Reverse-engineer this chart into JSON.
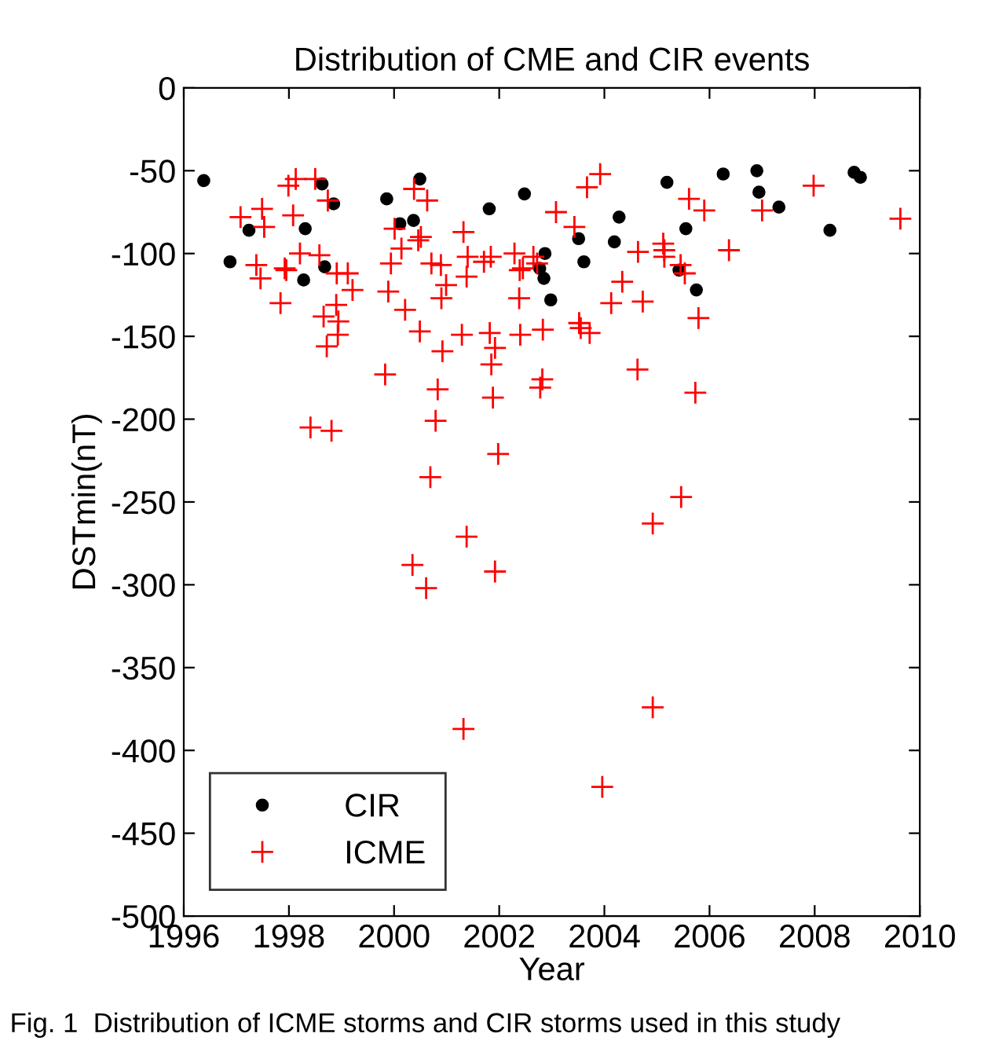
{
  "chart_data": {
    "type": "scatter",
    "title": "Distribution of CME and CIR events",
    "xlabel": "Year",
    "ylabel": "DSTmin(nT)",
    "xlim": [
      1996,
      2010
    ],
    "xticks": [
      1996,
      1998,
      2000,
      2002,
      2004,
      2006,
      2008,
      2010
    ],
    "ylim": [
      -500,
      0
    ],
    "yticks": [
      -500,
      -450,
      -400,
      -350,
      -300,
      -250,
      -200,
      -150,
      -100,
      -50,
      0
    ],
    "grid": false,
    "legend": "bottom left",
    "series": [
      {
        "name": "CIR",
        "color": "#000000",
        "marker": "circle",
        "x": [
          1996.38,
          1996.88,
          1997.24,
          1998.63,
          1998.85,
          1998.31,
          1998.28,
          1998.68,
          1999.86,
          2000.11,
          2000.37,
          2000.49,
          2001.81,
          2002.48,
          2002.77,
          2002.87,
          2002.85,
          2002.98,
          2003.51,
          2003.61,
          2004.19,
          2004.28,
          2005.19,
          2005.42,
          2005.55,
          2005.75,
          2006.26,
          2006.9,
          2006.94,
          2007.32,
          2008.29,
          2008.75,
          2008.87
        ],
        "values": [
          -56,
          -105,
          -86,
          -58,
          -70,
          -85,
          -116,
          -108,
          -67,
          -82,
          -80,
          -55,
          -73,
          -64,
          -109,
          -100,
          -115,
          -128,
          -91,
          -105,
          -93,
          -78,
          -57,
          -110,
          -85,
          -122,
          -52,
          -50,
          -63,
          -72,
          -86,
          -51,
          -54
        ]
      },
      {
        "name": "ICME",
        "color": "#ff0000",
        "marker": "cross",
        "x": [
          1997.08,
          1997.49,
          1997.53,
          1997.38,
          1997.46,
          1997.84,
          1997.92,
          1997.95,
          1997.99,
          1998.13,
          1998.08,
          1998.21,
          1998.5,
          1998.58,
          1998.74,
          1998.66,
          1998.72,
          1998.9,
          1998.91,
          1998.94,
          1998.93,
          1999.12,
          1999.21,
          1998.41,
          1998.81,
          1999.83,
          1999.89,
          1999.94,
          2000.01,
          2000.14,
          2000.21,
          2000.38,
          2000.63,
          2000.51,
          2000.46,
          2000.49,
          2000.71,
          2000.89,
          2000.9,
          2000.99,
          2000.92,
          2000.83,
          2000.79,
          2000.69,
          2000.35,
          2000.61,
          2001.32,
          2001.4,
          2001.38,
          2001.29,
          2001.38,
          2001.32,
          2001.71,
          2001.84,
          2001.82,
          2001.92,
          2001.85,
          2001.88,
          2001.98,
          2001.92,
          2002.29,
          2002.45,
          2002.39,
          2002.65,
          2002.72,
          2002.38,
          2002.4,
          2002.83,
          2002.82,
          2002.78,
          2003.08,
          2003.43,
          2003.52,
          2003.55,
          2003.72,
          2003.67,
          2003.92,
          2003.96,
          2004.13,
          2004.34,
          2004.64,
          2004.73,
          2004.63,
          2004.92,
          2004.92,
          2005.12,
          2005.14,
          2005.14,
          2005.45,
          2005.53,
          2005.46,
          2005.61,
          2005.9,
          2005.79,
          2005.73,
          2006.37,
          2007.0,
          2007.98,
          2009.63
        ],
        "values": [
          -78,
          -73,
          -84,
          -107,
          -115,
          -130,
          -109,
          -110,
          -59,
          -55,
          -77,
          -100,
          -55,
          -101,
          -68,
          -138,
          -156,
          -131,
          -112,
          -141,
          -149,
          -112,
          -122,
          -205,
          -207,
          -173,
          -123,
          -106,
          -85,
          -97,
          -134,
          -61,
          -68,
          -90,
          -92,
          -147,
          -106,
          -107,
          -127,
          -119,
          -159,
          -182,
          -201,
          -235,
          -288,
          -302,
          -87,
          -102,
          -114,
          -149,
          -271,
          -387,
          -105,
          -102,
          -148,
          -157,
          -167,
          -187,
          -221,
          -292,
          -100,
          -109,
          -110,
          -102,
          -106,
          -127,
          -149,
          -146,
          -176,
          -181,
          -75,
          -84,
          -142,
          -145,
          -148,
          -60,
          -52,
          -422,
          -130,
          -117,
          -99,
          -129,
          -170,
          -263,
          -374,
          -94,
          -98,
          -102,
          -107,
          -112,
          -247,
          -67,
          -74,
          -139,
          -184,
          -98,
          -74,
          -59,
          -79
        ]
      }
    ],
    "annotations": [
      "Fig. 1  Distribution of ICME storms and CIR storms used in this study"
    ]
  }
}
